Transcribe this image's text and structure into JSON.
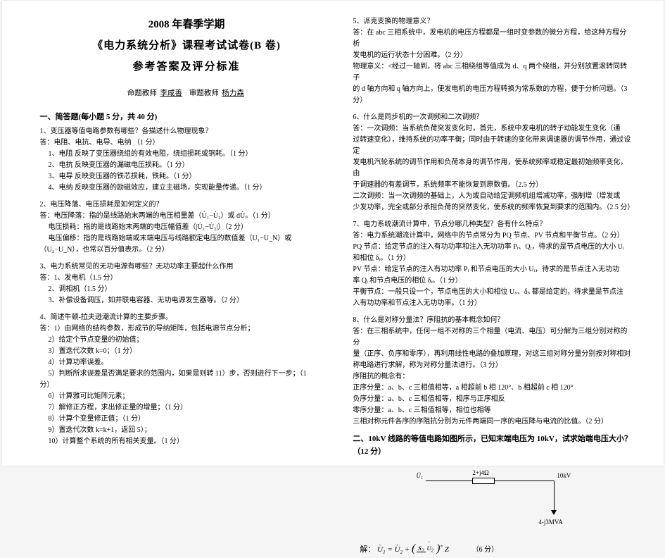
{
  "header": {
    "semester": "2008 年春季学期",
    "course": "《电力系统分析》课程考试试卷(B 卷)",
    "subtitle": "参考答案及评分标准",
    "teacher_prefix": "命题教师",
    "teacher1": "李咸善",
    "review_prefix": "审题教师",
    "teacher2": "杨力森"
  },
  "section1": {
    "heading": "一、简答题(每小题 5 分，共 40 分)",
    "q1": {
      "title": "1、变压器等值电路参数有哪些？各描述什么物理现象？",
      "ans_label": "答：",
      "a1": "电阻、电抗、电导、电纳        （1 分）",
      "a2": "1、电阻    反映了变压器绕组的有效电阻，绕组损耗或铜耗。（1 分）",
      "a3": "2、电抗    反映变压器的漏磁电压损耗。（1 分）",
      "a4": "3、电导    反映变压器的铁芯损耗，铁耗。（1 分）",
      "a5": "4、电纳    反映变压器的励磁效应，建立主磁场，实现能量传递。（1 分）"
    },
    "q2": {
      "title": "2、电压降落、电压损耗是如何定义的？",
      "ans_label": "答：",
      "a1": "电压降落：指的是线路始末两端的电压相量差（U̇₁−U̇₂）或 dU̇。（1 分）",
      "a2": "电压损耗：指的是线路始末两端的电压幅值差（|U̇₁−U̇₂|）（2 分）",
      "a3": "电压偏移：指的是线路始端或末端电压与线路额定电压的数值差（U₁−U_N）或",
      "a4": "（U₂−U_N），也常以百分值表示。（2 分）"
    },
    "q3": {
      "title": "3、电力系统常见的无功电源有哪些？无功功率主要起什么作用",
      "ans_label": "答：",
      "a1": "1、发电机（1.5 分）",
      "a2": "2、调相机（1.5 分）",
      "a3": "3、补偿设备调压，如并联电容器、无功电源发生器等。（2 分）"
    },
    "q4": {
      "title": "4、简述牛顿-拉夫逊潮流计算的主要步骤。",
      "ans_label": "答：",
      "a1": "1）由网络的结构参数，形成节的导纳矩阵，包括电源节点分析；",
      "a2": "2）给定个节点变量的初始值；",
      "a3": "3）置迭代次数 k=0；（1 分）",
      "a4": "4）计算功率误差。",
      "a5": "5）判断所求误差是否满足要求的范围内，如果是则转 11）步，否则进行下一步；（1",
      "a5b": "分）",
      "a6": "6）计算雅可比矩阵元素；",
      "a7": "7）解修正方程，求出修正量的增量；（1 分）",
      "a8": "8）计算个变量修正值；（1 分）",
      "a9": "9）置迭代次数 k=k+1，返回 5）；",
      "a10": "10）计算整个系统的所有相关变量。（1 分）"
    }
  },
  "section_right": {
    "q5": {
      "title": "5、派克变换的物理意义？",
      "a1": "答：在 abc 三相系统中，发电机的电压方程都是一组时变参数的微分方程，给这种方程分析",
      "a2": "发电机的运行状态十分困难。（2 分）",
      "a3": "物理意义：<经过一轴到，将 abc 三相绕组等值成为 d、q 两个绕组，并分别放置滚转同转子",
      "a4": "的 d 轴方向和 q 轴方向上，使发电机的电压方程转换为常系数的方程，便于分析问题。（3 分）"
    },
    "q6": {
      "title": "6、什么是同步机的一次调频和二次调频？",
      "a1": "答：一次调频：当系统负荷突发变化时，首先，系统中发电机的转子动能发生变化（通",
      "a2": "过转速变化），维持系统的功率平衡；同时由于转速的变化带来调速器的调节作用，通过设定",
      "a3": "发电机汽轮系统的调节作用和负荷本身的调节作用，使系统频率或稳定最初始频率变化，由",
      "a4": "于调速器的有差调节，系统频率不能恢复到原数值。（2.5 分）",
      "a5": "     二次调频：当一次调频的基础上，人为或自动给定调频机组增减功率，强制增（增发或",
      "a6": "少发功率，完全或部分承担负荷的突然变化，使系统的频率恢复到要求的范围内。（2.5 分）"
    },
    "q7": {
      "title": "7、电力系统潮流计算中，节点分哪几种类型？各有什么特点？",
      "a1": "答：电力系统潮流计算中，网络中的节点常分为 PQ 节点、PV 节点和平衡节点。（2 分）",
      "a2": "     PQ 节点：给定节点的注入有功功率和注入无功功率 Pᵢ、Qᵢ，待求的是节点电压的大小 Uᵢ",
      "a3": "和相位 δᵢ。（1 分）",
      "a4": "     PV 节点：给定节点的注入有功功率 Pᵢ 和节点电压的大小 Uᵢ，待求的是节点注入无功功",
      "a5": "率 Qᵢ 和节点电压的相位 δᵢ。（1 分）",
      "a6": "     平衡节点：一般只设一个，节点电压的大小和相位 Uₛ、δₛ 都是给定的，待求量是节点注",
      "a7": "入有功功率和节点注入无功功率。（1 分）"
    },
    "q8": {
      "title": "8、什么是对称分量法？序阻抗的基本概念如何？",
      "a1": "答：在三相系统中，任何一组不对称的三个相量（电流、电压）可分解为三组分别对称的分",
      "a2": "量（正序、负序和零序），再利用线性电路的叠加原理，对这三组对称分量分别按对称相对",
      "a3": "称电路进行求解，称为对称分量法进行。（3 分）",
      "a4": "序阻抗的概念有：",
      "a5": "正序分量：a、b、c 三相值相等，a 相超前 b 相 120°、b 相超前 c 相 120°",
      "a6": "负序分量：a、b、c 三相值相等，相序与正序相反",
      "a7": "零序分量：a、b、c 三相值相等，相位也相等",
      "a8": "三相对称元件各序的序阻抗分别为元件两端同一序的电压降与电流的比值。（2 分）"
    }
  },
  "section2": {
    "heading": "二、10kV 线路的等值电路如图所示，已知末端电压为 10kV，试求始端电压大小？（12 分）",
    "circuit": {
      "impedance": "2+j4Ω",
      "u1": "U̇₁",
      "v_end": "10kV",
      "load": "4-j3MVA"
    },
    "formula_label": "解：",
    "formula_note": "（6 分）"
  }
}
